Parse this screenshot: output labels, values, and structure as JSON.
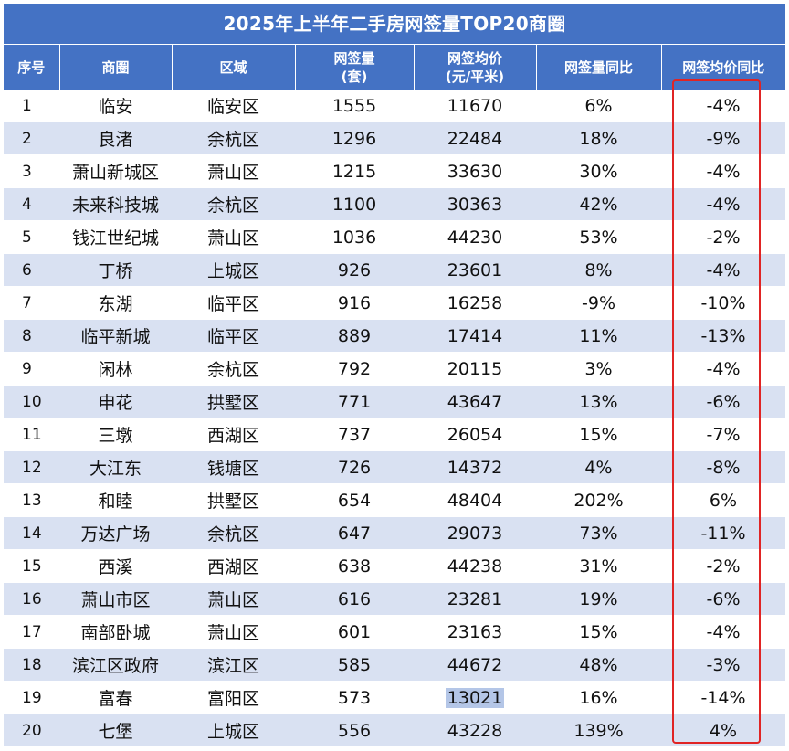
{
  "title": "2025年上半年二手房网签量TOP20商圈",
  "headers": {
    "idx": "序号",
    "area": "商圈",
    "district": "区域",
    "volume_line1": "网签量",
    "volume_line2": "(套)",
    "price_line1": "网签均价",
    "price_line2": "(元/平米)",
    "volume_yoy": "网签量同比",
    "price_yoy": "网签均价同比"
  },
  "rows": [
    {
      "idx": "1",
      "area": "临安",
      "district": "临安区",
      "volume": "1555",
      "price": "11670",
      "volume_yoy": "6%",
      "price_yoy": "-4%"
    },
    {
      "idx": "2",
      "area": "良渚",
      "district": "余杭区",
      "volume": "1296",
      "price": "22484",
      "volume_yoy": "18%",
      "price_yoy": "-9%"
    },
    {
      "idx": "3",
      "area": "萧山新城区",
      "district": "萧山区",
      "volume": "1215",
      "price": "33630",
      "volume_yoy": "30%",
      "price_yoy": "-4%"
    },
    {
      "idx": "4",
      "area": "未来科技城",
      "district": "余杭区",
      "volume": "1100",
      "price": "30363",
      "volume_yoy": "42%",
      "price_yoy": "-4%"
    },
    {
      "idx": "5",
      "area": "钱江世纪城",
      "district": "萧山区",
      "volume": "1036",
      "price": "44230",
      "volume_yoy": "53%",
      "price_yoy": "-2%"
    },
    {
      "idx": "6",
      "area": "丁桥",
      "district": "上城区",
      "volume": "926",
      "price": "23601",
      "volume_yoy": "8%",
      "price_yoy": "-4%"
    },
    {
      "idx": "7",
      "area": "东湖",
      "district": "临平区",
      "volume": "916",
      "price": "16258",
      "volume_yoy": "-9%",
      "price_yoy": "-10%"
    },
    {
      "idx": "8",
      "area": "临平新城",
      "district": "临平区",
      "volume": "889",
      "price": "17414",
      "volume_yoy": "11%",
      "price_yoy": "-13%"
    },
    {
      "idx": "9",
      "area": "闲林",
      "district": "余杭区",
      "volume": "792",
      "price": "20115",
      "volume_yoy": "3%",
      "price_yoy": "-4%"
    },
    {
      "idx": "10",
      "area": "申花",
      "district": "拱墅区",
      "volume": "771",
      "price": "43647",
      "volume_yoy": "13%",
      "price_yoy": "-6%"
    },
    {
      "idx": "11",
      "area": "三墩",
      "district": "西湖区",
      "volume": "737",
      "price": "26054",
      "volume_yoy": "15%",
      "price_yoy": "-7%"
    },
    {
      "idx": "12",
      "area": "大江东",
      "district": "钱塘区",
      "volume": "726",
      "price": "14372",
      "volume_yoy": "4%",
      "price_yoy": "-8%"
    },
    {
      "idx": "13",
      "area": "和睦",
      "district": "拱墅区",
      "volume": "654",
      "price": "48404",
      "volume_yoy": "202%",
      "price_yoy": "6%"
    },
    {
      "idx": "14",
      "area": "万达广场",
      "district": "余杭区",
      "volume": "647",
      "price": "29073",
      "volume_yoy": "73%",
      "price_yoy": "-11%"
    },
    {
      "idx": "15",
      "area": "西溪",
      "district": "西湖区",
      "volume": "638",
      "price": "44238",
      "volume_yoy": "31%",
      "price_yoy": "-2%"
    },
    {
      "idx": "16",
      "area": "萧山市区",
      "district": "萧山区",
      "volume": "616",
      "price": "23281",
      "volume_yoy": "19%",
      "price_yoy": "-6%"
    },
    {
      "idx": "17",
      "area": "南部卧城",
      "district": "萧山区",
      "volume": "601",
      "price": "23163",
      "volume_yoy": "15%",
      "price_yoy": "-4%"
    },
    {
      "idx": "18",
      "area": "滨江区政府",
      "district": "滨江区",
      "volume": "585",
      "price": "44672",
      "volume_yoy": "48%",
      "price_yoy": "-3%"
    },
    {
      "idx": "19",
      "area": "富春",
      "district": "富阳区",
      "volume": "573",
      "price": "13021",
      "volume_yoy": "16%",
      "price_yoy": "-14%"
    },
    {
      "idx": "20",
      "area": "七堡",
      "district": "上城区",
      "volume": "556",
      "price": "43228",
      "volume_yoy": "139%",
      "price_yoy": "4%"
    }
  ],
  "colors": {
    "header_bg": "#4472c4",
    "alt_row_bg": "#d9e1f2",
    "highlight_box": "#e02424",
    "selected_cell_bg": "#b4c6e7"
  }
}
